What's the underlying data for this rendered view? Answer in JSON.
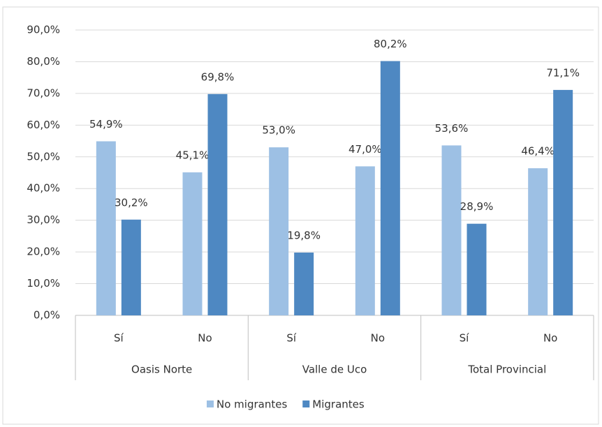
{
  "chart_data": {
    "type": "bar",
    "categories": [
      "Sí",
      "No",
      "Sí",
      "No",
      "Sí",
      "No"
    ],
    "groups": [
      "Oasis Norte",
      "Valle de Uco",
      "Total Provincial"
    ],
    "series": [
      {
        "name": "No migrantes",
        "color": "#9dc0e4",
        "values": [
          54.9,
          45.1,
          53.0,
          47.0,
          53.6,
          46.4
        ],
        "value_labels": [
          "54,9%",
          "45,1%",
          "53,0%",
          "47,0%",
          "53,6%",
          "46,4%"
        ]
      },
      {
        "name": "Migrantes",
        "color": "#4e88c2",
        "values": [
          30.2,
          69.8,
          19.8,
          80.2,
          28.9,
          71.1
        ],
        "value_labels": [
          "30,2%",
          "69,8%",
          "19,8%",
          "80,2%",
          "28,9%",
          "71,1%"
        ]
      }
    ],
    "ylim": [
      0,
      90
    ],
    "yticks": [
      {
        "value": 0,
        "label": "0,0%"
      },
      {
        "value": 10,
        "label": "10,0%"
      },
      {
        "value": 20,
        "label": "20,0%"
      },
      {
        "value": 30,
        "label": "30,0%"
      },
      {
        "value": 40,
        "label": "40,0%"
      },
      {
        "value": 50,
        "label": "50,0%"
      },
      {
        "value": 60,
        "label": "60,0%"
      },
      {
        "value": 70,
        "label": "70,0%"
      },
      {
        "value": 80,
        "label": "80,0%"
      },
      {
        "value": 90,
        "label": "90,0%"
      }
    ],
    "grid": true,
    "legend": "bottom"
  }
}
